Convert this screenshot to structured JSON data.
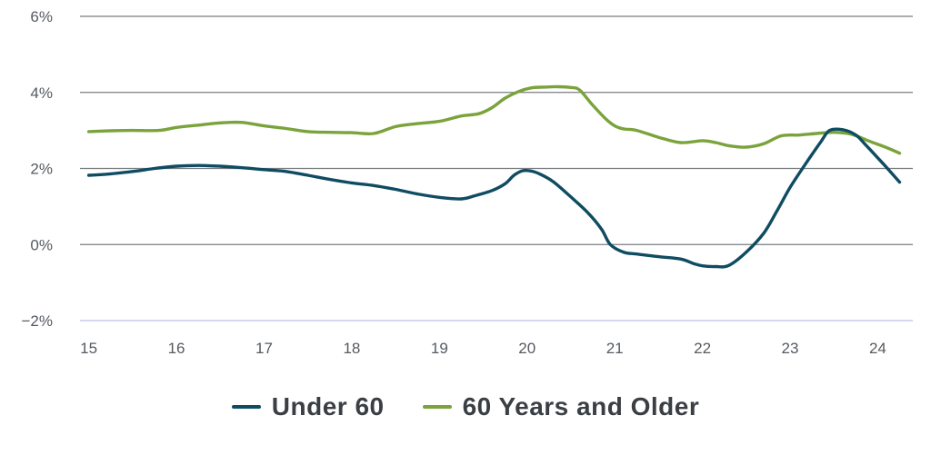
{
  "chart_data": {
    "type": "line",
    "title": "",
    "xlabel": "",
    "ylabel": "",
    "xlim": [
      14.9,
      24.4
    ],
    "ylim": [
      -2,
      6
    ],
    "x_ticks": [
      "15",
      "16",
      "17",
      "18",
      "19",
      "20",
      "21",
      "22",
      "23",
      "24"
    ],
    "y_ticks": [
      "6%",
      "4%",
      "2%",
      "0%",
      "−2%"
    ],
    "y_tick_values": [
      6,
      4,
      2,
      0,
      -2
    ],
    "grid": true,
    "legend_position": "bottom",
    "series": [
      {
        "name": "Under 60",
        "color": "#0f4c62",
        "x": [
          15.0,
          15.25,
          15.5,
          15.75,
          16.0,
          16.25,
          16.5,
          16.75,
          17.0,
          17.25,
          17.5,
          17.75,
          18.0,
          18.25,
          18.5,
          18.75,
          19.0,
          19.25,
          19.4,
          19.6,
          19.75,
          19.85,
          19.95,
          20.05,
          20.15,
          20.3,
          20.5,
          20.7,
          20.85,
          20.95,
          21.1,
          21.25,
          21.5,
          21.75,
          21.9,
          22.0,
          22.15,
          22.3,
          22.5,
          22.7,
          22.85,
          23.0,
          23.2,
          23.35,
          23.45,
          23.6,
          23.75,
          23.85,
          24.0,
          24.15,
          24.25
        ],
        "y": [
          1.82,
          1.86,
          1.92,
          2.0,
          2.06,
          2.08,
          2.06,
          2.02,
          1.97,
          1.92,
          1.82,
          1.71,
          1.62,
          1.55,
          1.45,
          1.33,
          1.24,
          1.2,
          1.28,
          1.42,
          1.6,
          1.82,
          1.94,
          1.93,
          1.85,
          1.65,
          1.25,
          0.82,
          0.4,
          0.0,
          -0.2,
          -0.25,
          -0.32,
          -0.38,
          -0.5,
          -0.56,
          -0.58,
          -0.55,
          -0.2,
          0.3,
          0.88,
          1.5,
          2.2,
          2.7,
          3.0,
          3.02,
          2.88,
          2.65,
          2.28,
          1.9,
          1.64
        ]
      },
      {
        "name": "60 Years and Older",
        "color": "#7aa33c",
        "x": [
          15.0,
          15.25,
          15.5,
          15.8,
          16.0,
          16.25,
          16.5,
          16.75,
          17.0,
          17.25,
          17.5,
          17.75,
          18.0,
          18.25,
          18.5,
          18.75,
          19.0,
          19.25,
          19.45,
          19.6,
          19.75,
          19.9,
          20.05,
          20.2,
          20.35,
          20.5,
          20.6,
          20.75,
          20.9,
          21.0,
          21.1,
          21.25,
          21.5,
          21.75,
          22.0,
          22.15,
          22.3,
          22.5,
          22.7,
          22.9,
          23.1,
          23.3,
          23.5,
          23.7,
          23.9,
          24.1,
          24.25
        ],
        "y": [
          2.97,
          2.99,
          3.0,
          3.0,
          3.08,
          3.14,
          3.2,
          3.21,
          3.12,
          3.05,
          2.97,
          2.95,
          2.94,
          2.92,
          3.1,
          3.18,
          3.24,
          3.38,
          3.44,
          3.6,
          3.85,
          4.02,
          4.12,
          4.14,
          4.15,
          4.13,
          4.06,
          3.66,
          3.3,
          3.12,
          3.04,
          3.0,
          2.82,
          2.68,
          2.73,
          2.68,
          2.6,
          2.56,
          2.65,
          2.86,
          2.88,
          2.92,
          2.95,
          2.9,
          2.72,
          2.55,
          2.4
        ]
      }
    ]
  }
}
